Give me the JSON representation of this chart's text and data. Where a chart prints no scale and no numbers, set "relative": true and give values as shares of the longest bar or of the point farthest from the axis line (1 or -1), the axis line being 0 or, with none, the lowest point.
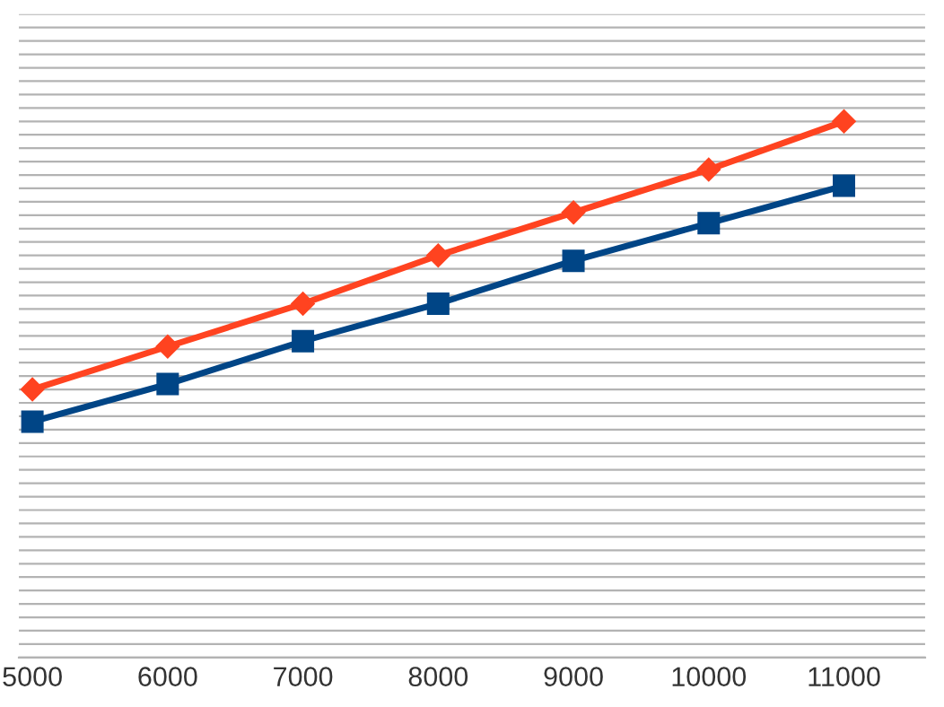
{
  "chart_data": {
    "type": "line",
    "relative": true,
    "x": [
      5000,
      6000,
      7000,
      8000,
      9000,
      10000,
      11000
    ],
    "xlim": [
      4900,
      11600
    ],
    "xticks": [
      5000,
      6000,
      7000,
      8000,
      9000,
      10000,
      11000
    ],
    "grid": "y",
    "series": [
      {
        "color": "#ff4320",
        "marker": "diamond",
        "values": [
          0.5,
          0.58,
          0.66,
          0.75,
          0.83,
          0.91,
          1.0
        ]
      },
      {
        "color": "#004586",
        "marker": "square",
        "values": [
          0.44,
          0.51,
          0.59,
          0.66,
          0.74,
          0.81,
          0.88
        ]
      }
    ]
  }
}
